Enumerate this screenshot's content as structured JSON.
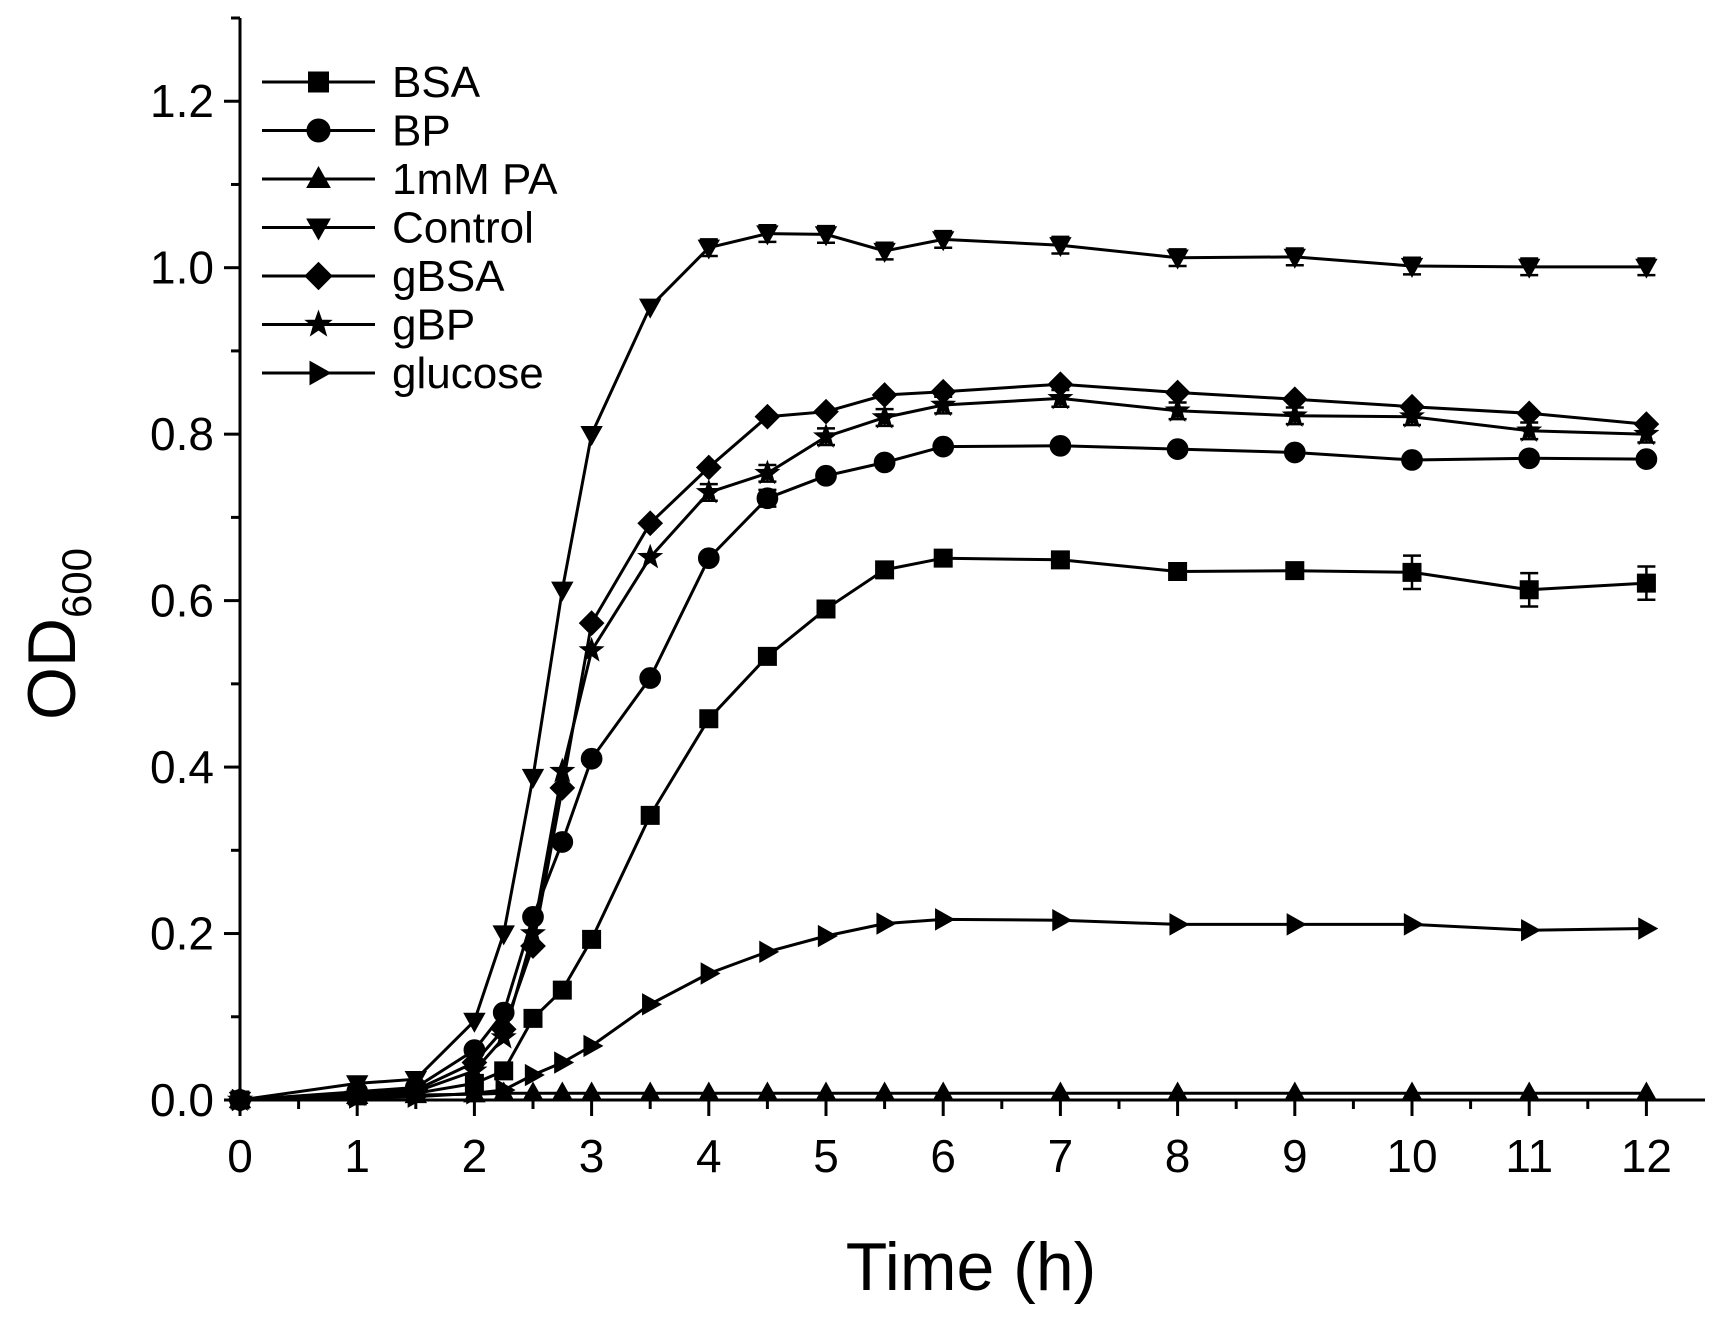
{
  "chart_data": {
    "type": "line",
    "title": "",
    "xlabel": "Time (h)",
    "ylabel": "OD",
    "ylabel_sub": "600",
    "xlim": [
      0,
      12.5
    ],
    "ylim": [
      0,
      1.3
    ],
    "xticks": [
      0,
      1,
      2,
      3,
      4,
      5,
      6,
      7,
      8,
      9,
      10,
      11,
      12
    ],
    "yticks": [
      0.0,
      0.2,
      0.4,
      0.6,
      0.8,
      1.0,
      1.2
    ],
    "ytick_labels": [
      "0.0",
      "0.2",
      "0.4",
      "0.6",
      "0.8",
      "1.0",
      "1.2"
    ],
    "grid": false,
    "legend_position": "top-left",
    "x": [
      0,
      1,
      1.5,
      2,
      2.25,
      2.5,
      2.75,
      3,
      3.5,
      4,
      4.5,
      5,
      5.5,
      6,
      7,
      8,
      9,
      10,
      11,
      12
    ],
    "series": [
      {
        "name": "BSA",
        "marker": "square",
        "values": [
          0,
          0.005,
          0.008,
          0.02,
          0.035,
          0.098,
          0.132,
          0.193,
          0.342,
          0.458,
          0.533,
          0.59,
          0.637,
          0.651,
          0.649,
          0.635,
          0.636,
          0.634,
          0.613,
          0.621
        ],
        "errors": [
          0,
          0,
          0,
          0,
          0,
          0,
          0,
          0,
          0,
          0,
          0,
          0,
          0,
          0,
          0,
          0,
          0,
          0.02,
          0.02,
          0.02
        ]
      },
      {
        "name": "BP",
        "marker": "circle",
        "values": [
          0,
          0.01,
          0.015,
          0.06,
          0.105,
          0.22,
          0.31,
          0.41,
          0.507,
          0.651,
          0.723,
          0.75,
          0.766,
          0.785,
          0.786,
          0.782,
          0.778,
          0.769,
          0.771,
          0.77
        ],
        "errors": [
          0,
          0,
          0,
          0,
          0,
          0,
          0,
          0,
          0,
          0,
          0.01,
          0,
          0,
          0,
          0,
          0,
          0,
          0,
          0,
          0
        ]
      },
      {
        "name": "1mM PA",
        "marker": "triangle-up",
        "values": [
          0,
          0.005,
          0.006,
          0.007,
          0.008,
          0.008,
          0.008,
          0.008,
          0.008,
          0.008,
          0.008,
          0.008,
          0.008,
          0.008,
          0.008,
          0.008,
          0.008,
          0.008,
          0.008,
          0.008
        ],
        "errors": [
          0,
          0,
          0,
          0,
          0,
          0,
          0,
          0,
          0,
          0,
          0,
          0,
          0,
          0,
          0,
          0,
          0,
          0,
          0,
          0
        ]
      },
      {
        "name": "Control",
        "marker": "triangle-down",
        "values": [
          0,
          0.02,
          0.025,
          0.095,
          0.2,
          0.388,
          0.613,
          0.8,
          0.953,
          1.024,
          1.041,
          1.04,
          1.02,
          1.034,
          1.027,
          1.012,
          1.013,
          1.002,
          1.001,
          1.001
        ],
        "errors": [
          0,
          0,
          0,
          0,
          0,
          0,
          0,
          0,
          0,
          0.01,
          0.01,
          0.01,
          0.01,
          0.01,
          0.01,
          0.01,
          0.01,
          0.01,
          0.01,
          0.01
        ]
      },
      {
        "name": "gBSA",
        "marker": "diamond",
        "values": [
          0,
          0.008,
          0.012,
          0.045,
          0.085,
          0.185,
          0.375,
          0.573,
          0.693,
          0.76,
          0.821,
          0.827,
          0.847,
          0.851,
          0.86,
          0.85,
          0.842,
          0.833,
          0.825,
          0.812
        ],
        "errors": [
          0,
          0,
          0,
          0,
          0,
          0,
          0,
          0,
          0,
          0,
          0,
          0,
          0,
          0,
          0,
          0,
          0,
          0,
          0,
          0
        ]
      },
      {
        "name": "gBP",
        "marker": "star",
        "values": [
          0,
          0.006,
          0.01,
          0.035,
          0.075,
          0.2,
          0.395,
          0.54,
          0.652,
          0.73,
          0.753,
          0.797,
          0.82,
          0.835,
          0.843,
          0.828,
          0.822,
          0.821,
          0.804,
          0.8
        ],
        "errors": [
          0,
          0,
          0,
          0,
          0,
          0,
          0,
          0,
          0,
          0.01,
          0.01,
          0.01,
          0.01,
          0.01,
          0.01,
          0.01,
          0.01,
          0.01,
          0.01,
          0.01
        ]
      },
      {
        "name": "glucose",
        "marker": "triangle-right",
        "values": [
          0,
          0.003,
          0.004,
          0.008,
          0.012,
          0.03,
          0.045,
          0.065,
          0.115,
          0.152,
          0.178,
          0.197,
          0.212,
          0.217,
          0.216,
          0.211,
          0.211,
          0.211,
          0.204,
          0.206
        ],
        "errors": [
          0,
          0,
          0,
          0,
          0,
          0,
          0,
          0,
          0,
          0,
          0,
          0,
          0,
          0,
          0,
          0,
          0,
          0,
          0,
          0
        ]
      }
    ]
  }
}
